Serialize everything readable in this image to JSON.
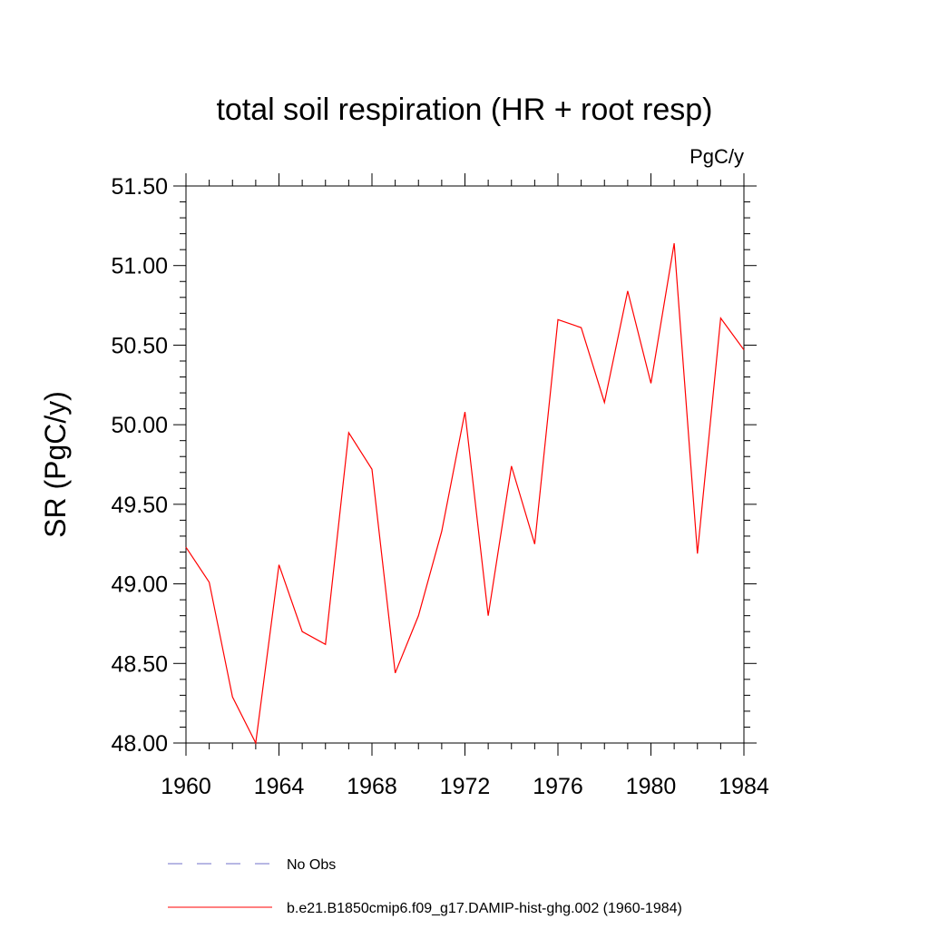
{
  "chart_data": {
    "type": "line",
    "title": "total soil respiration (HR + root resp)",
    "units": "PgC/y",
    "y_label": "SR  (PgC/y)",
    "x": [
      1960,
      1961,
      1962,
      1963,
      1964,
      1965,
      1966,
      1967,
      1968,
      1969,
      1970,
      1971,
      1972,
      1973,
      1974,
      1975,
      1976,
      1977,
      1978,
      1979,
      1980,
      1981,
      1982,
      1983,
      1984
    ],
    "series": [
      {
        "name": "b.e21.B1850cmip6.f09_g17.DAMIP-hist-ghg.002 (1960-1984)",
        "color": "#ff0000",
        "values": [
          49.23,
          49.01,
          48.29,
          48.0,
          49.12,
          48.7,
          48.62,
          49.95,
          49.72,
          48.44,
          48.8,
          49.33,
          50.08,
          48.8,
          49.74,
          49.25,
          50.66,
          50.61,
          50.14,
          50.84,
          50.26,
          51.14,
          49.19,
          50.67,
          50.47
        ]
      }
    ],
    "legend": [
      {
        "name": "No Obs",
        "color": "#7070c8",
        "dashed": true
      }
    ],
    "xlim": [
      1960,
      1984
    ],
    "xticks": [
      1960,
      1964,
      1968,
      1972,
      1976,
      1980,
      1984
    ],
    "ylim": [
      48.0,
      51.5
    ],
    "yticks": [
      {
        "value": 48.0,
        "label": "48.00"
      },
      {
        "value": 48.5,
        "label": "48.50"
      },
      {
        "value": 49.0,
        "label": "49.00"
      },
      {
        "value": 49.5,
        "label": "49.50"
      },
      {
        "value": 50.0,
        "label": "50.00"
      },
      {
        "value": 50.5,
        "label": "50.50"
      },
      {
        "value": 51.0,
        "label": "51.00"
      },
      {
        "value": 51.5,
        "label": "51.50"
      }
    ]
  }
}
